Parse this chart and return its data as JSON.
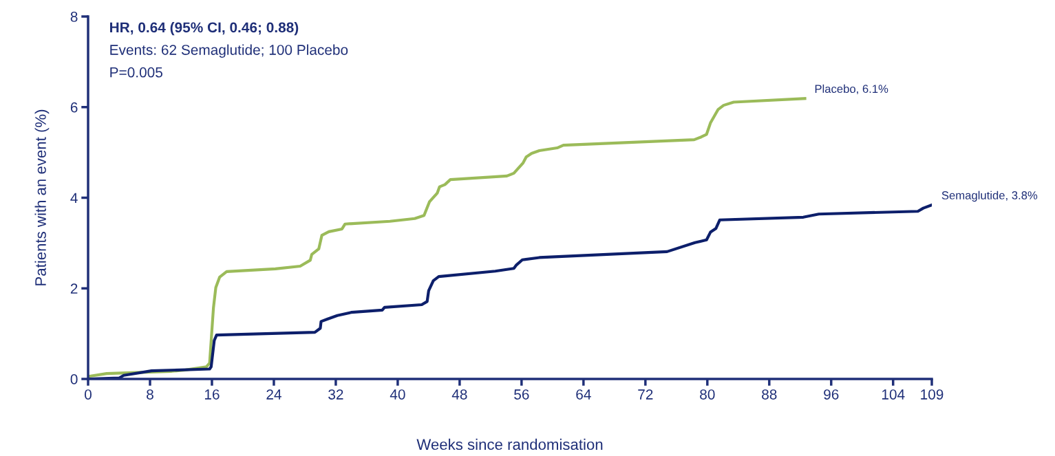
{
  "chart_data": {
    "type": "line",
    "xlabel": "Weeks since randomisation",
    "ylabel": "Patients with an event (%)",
    "xlim": [
      0,
      109
    ],
    "xticks": [
      0,
      8,
      16,
      24,
      32,
      40,
      48,
      56,
      64,
      72,
      80,
      88,
      96,
      104,
      109
    ],
    "ylim": [
      0,
      8
    ],
    "yticks": [
      0,
      2,
      4,
      6,
      8
    ],
    "grid": false,
    "legend": false,
    "line_style": "solid",
    "marker": "none",
    "series": [
      {
        "color": "#9bbb59",
        "x": [
          0,
          0.2,
          2.4,
          10.8,
          12.6,
          15.3,
          15.7,
          16.2,
          16.5,
          17.0,
          17.9,
          24.2,
          27.4,
          28.7,
          28.9,
          29.8,
          30.2,
          31.1,
          32.8,
          33.2,
          39.0,
          42.2,
          43.4,
          44.1,
          45.1,
          45.4,
          46.1,
          46.8,
          54.1,
          55.0,
          56.2,
          56.6,
          57.3,
          58.3,
          60.6,
          61.4,
          78.3,
          79.2,
          79.9,
          80.4,
          81.4,
          82.1,
          83.4,
          92.6
        ],
        "values": [
          0,
          0.06,
          0.12,
          0.17,
          0.2,
          0.27,
          0.35,
          1.58,
          2.02,
          2.25,
          2.37,
          2.43,
          2.49,
          2.62,
          2.75,
          2.87,
          3.17,
          3.25,
          3.31,
          3.42,
          3.48,
          3.54,
          3.61,
          3.91,
          4.1,
          4.24,
          4.29,
          4.4,
          4.48,
          4.54,
          4.77,
          4.9,
          4.98,
          5.04,
          5.1,
          5.16,
          5.28,
          5.34,
          5.4,
          5.65,
          5.95,
          6.04,
          6.11,
          6.19
        ]
      },
      {
        "color": "#0d1f6b",
        "x": [
          0,
          4.0,
          4.6,
          8.2,
          15.7,
          15.9,
          16.3,
          16.6,
          29.3,
          30.0,
          30.1,
          30.9,
          32.2,
          34.0,
          38.0,
          38.3,
          43.1,
          43.8,
          44.0,
          44.6,
          45.3,
          52.6,
          55.0,
          55.3,
          56.1,
          58.3,
          74.8,
          78.4,
          79.9,
          80.4,
          81.1,
          81.6,
          92.4,
          94.4,
          107.2,
          107.9,
          109
        ],
        "values": [
          0,
          0.02,
          0.08,
          0.18,
          0.22,
          0.27,
          0.85,
          0.97,
          1.03,
          1.12,
          1.27,
          1.32,
          1.4,
          1.47,
          1.52,
          1.58,
          1.64,
          1.71,
          1.95,
          2.17,
          2.26,
          2.38,
          2.44,
          2.51,
          2.63,
          2.68,
          2.81,
          3.01,
          3.07,
          3.24,
          3.32,
          3.51,
          3.57,
          3.64,
          3.7,
          3.77,
          3.84
        ]
      }
    ],
    "annotations": [
      "HR, 0.64 (95% CI, 0.46; 0.88)",
      "Events: 62 Semaglutide; 100 Placebo",
      "P=0.005",
      {
        "text": "Placebo, 6.1%",
        "x": 92.6,
        "y": 6.19
      },
      {
        "text": "Semaglutide, 3.8%",
        "x": 109,
        "y": 3.84
      }
    ]
  }
}
